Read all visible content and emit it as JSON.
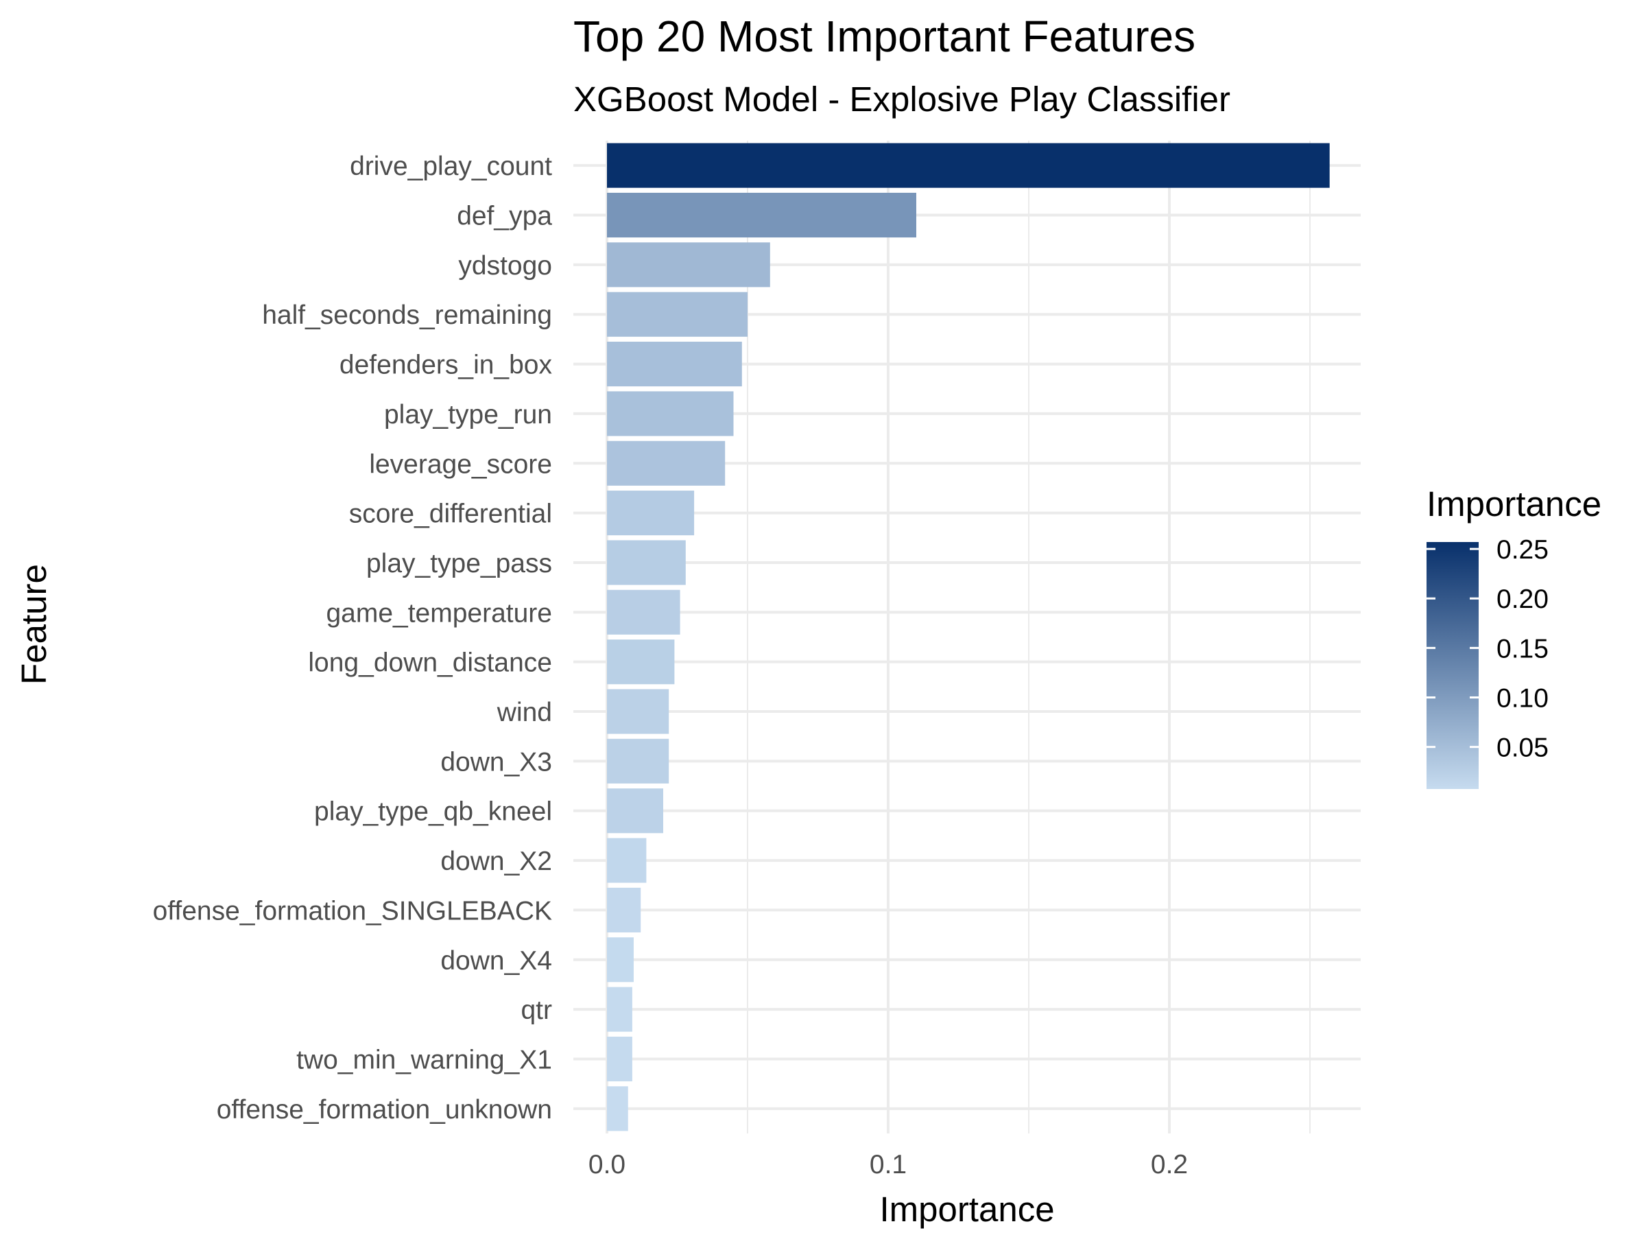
{
  "chart_data": {
    "type": "bar",
    "orientation": "horizontal",
    "title": "Top 20 Most Important Features",
    "subtitle": "XGBoost Model - Explosive Play Classifier",
    "xlabel": "Importance",
    "ylabel": "Feature",
    "categories": [
      "drive_play_count",
      "def_ypa",
      "ydstogo",
      "half_seconds_remaining",
      "defenders_in_box",
      "play_type_run",
      "leverage_score",
      "score_differential",
      "play_type_pass",
      "game_temperature",
      "long_down_distance",
      "wind",
      "down_X3",
      "play_type_qb_kneel",
      "down_X2",
      "offense_formation_SINGLEBACK",
      "down_X4",
      "qtr",
      "two_min_warning_X1",
      "offense_formation_unknown"
    ],
    "values": [
      0.257,
      0.11,
      0.058,
      0.05,
      0.048,
      0.045,
      0.042,
      0.031,
      0.028,
      0.026,
      0.024,
      0.022,
      0.022,
      0.02,
      0.014,
      0.012,
      0.0095,
      0.009,
      0.009,
      0.0075
    ],
    "xlim": [
      0,
      0.27
    ],
    "x_ticks": [
      "0.0",
      "0.1",
      "0.2"
    ],
    "grid": true,
    "legend": {
      "title": "Importance",
      "position": "right",
      "ticks": [
        "0.25",
        "0.20",
        "0.15",
        "0.10",
        "0.05"
      ],
      "range": [
        0.0075,
        0.257
      ]
    },
    "colors": {
      "low": "#c6dbef",
      "high": "#08306b",
      "grid": "#ebebeb",
      "tick_text": "#4d4d4d"
    }
  }
}
